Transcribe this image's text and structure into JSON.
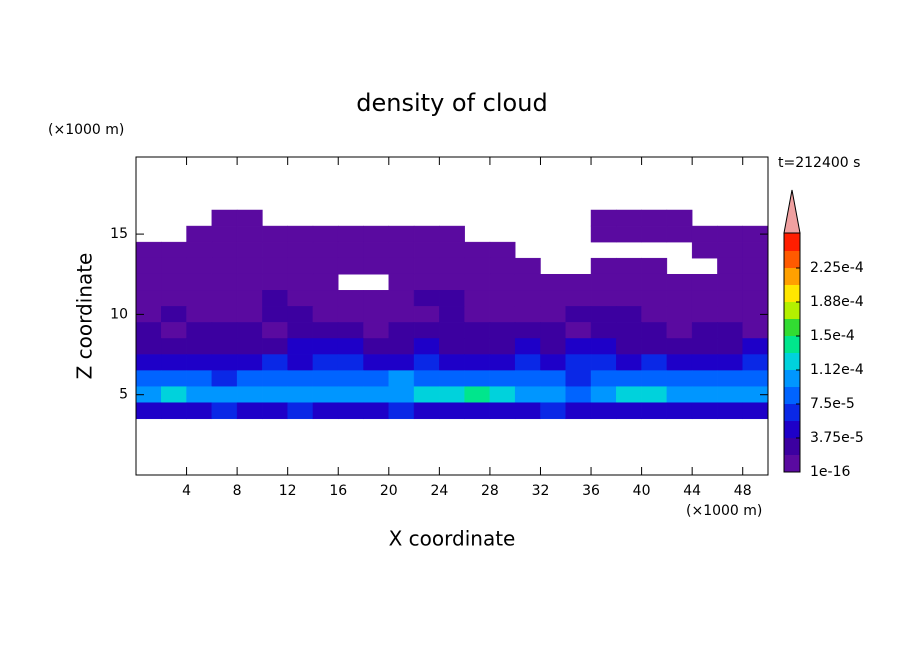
{
  "chart_data": {
    "type": "contour",
    "title": "density of cloud",
    "time_label": "t=212400 s",
    "xlabel": "X coordinate",
    "ylabel": "Z coordinate",
    "x_unit": "(×1000 m)",
    "y_unit": "(×1000 m)",
    "xlim": [
      0,
      50
    ],
    "ylim": [
      0,
      19.8
    ],
    "xticks": [
      4,
      8,
      12,
      16,
      20,
      24,
      28,
      32,
      36,
      40,
      44,
      48
    ],
    "yticks": [
      5,
      10,
      15
    ],
    "x": [
      1,
      3,
      5,
      7,
      9,
      11,
      13,
      15,
      17,
      19,
      21,
      23,
      25,
      27,
      29,
      31,
      33,
      35,
      37,
      39,
      41,
      43,
      45,
      47,
      49
    ],
    "z": [
      17,
      16,
      15,
      14,
      13,
      12,
      11,
      10,
      9,
      8,
      7,
      6,
      5,
      4
    ],
    "cell_width": 2,
    "cell_height": 1,
    "field": [
      [
        null,
        null,
        null,
        null,
        null,
        null,
        null,
        null,
        null,
        null,
        null,
        null,
        null,
        null,
        null,
        null,
        null,
        null,
        null,
        null,
        null,
        null,
        null,
        null,
        null
      ],
      [
        null,
        null,
        null,
        1e-05,
        1e-05,
        null,
        null,
        null,
        null,
        null,
        null,
        null,
        null,
        null,
        null,
        null,
        null,
        null,
        1e-05,
        1e-05,
        1e-05,
        1e-05,
        null,
        null,
        null
      ],
      [
        null,
        null,
        1e-05,
        1e-05,
        1e-05,
        1e-05,
        1e-05,
        1e-05,
        1e-05,
        1e-05,
        1e-05,
        1e-05,
        1e-05,
        null,
        null,
        null,
        null,
        null,
        1e-05,
        1e-05,
        1e-05,
        1e-05,
        1e-05,
        1e-05,
        1e-05
      ],
      [
        1e-05,
        1e-05,
        1e-05,
        1e-05,
        1e-05,
        1e-05,
        1e-05,
        1e-05,
        1e-05,
        1e-05,
        1e-05,
        1e-05,
        1e-05,
        1e-05,
        1e-05,
        null,
        null,
        null,
        null,
        null,
        null,
        null,
        1e-05,
        1e-05,
        1e-05
      ],
      [
        1e-05,
        1e-05,
        1e-05,
        1e-05,
        1e-05,
        1e-05,
        1e-05,
        1e-05,
        1e-05,
        1e-05,
        1e-05,
        1e-05,
        1e-05,
        1e-05,
        1e-05,
        1e-05,
        null,
        null,
        1e-05,
        1e-05,
        1e-05,
        null,
        null,
        1e-05,
        1e-05
      ],
      [
        1e-05,
        1e-05,
        1e-05,
        1e-05,
        1e-05,
        1e-05,
        1e-05,
        1e-05,
        null,
        null,
        1e-05,
        1e-05,
        1e-05,
        1e-05,
        1e-05,
        1e-05,
        1e-05,
        1e-05,
        1e-05,
        1e-05,
        1e-05,
        1e-05,
        1e-05,
        1e-05,
        1e-05
      ],
      [
        1e-05,
        1e-05,
        1e-05,
        1e-05,
        1e-05,
        2.5e-05,
        1e-05,
        1e-05,
        1e-05,
        1e-05,
        1e-05,
        2.5e-05,
        2.5e-05,
        1e-05,
        1e-05,
        1e-05,
        1e-05,
        1e-05,
        1e-05,
        1e-05,
        1e-05,
        1e-05,
        1e-05,
        1e-05,
        1e-05
      ],
      [
        1e-05,
        2.5e-05,
        1e-05,
        1e-05,
        1e-05,
        2.5e-05,
        2.5e-05,
        1e-05,
        1e-05,
        1e-05,
        1e-05,
        1e-05,
        2.5e-05,
        1e-05,
        1e-05,
        1e-05,
        1e-05,
        2.5e-05,
        2.5e-05,
        2.5e-05,
        1e-05,
        1e-05,
        1e-05,
        1e-05,
        1e-05
      ],
      [
        2.5e-05,
        1e-05,
        2.5e-05,
        2.5e-05,
        2.5e-05,
        1e-05,
        2.5e-05,
        2.5e-05,
        2.5e-05,
        1e-05,
        2.5e-05,
        2.5e-05,
        2.5e-05,
        2.5e-05,
        2.5e-05,
        2.5e-05,
        2.5e-05,
        1e-05,
        2.5e-05,
        2.5e-05,
        2.5e-05,
        1e-05,
        2.5e-05,
        2.5e-05,
        1e-05
      ],
      [
        2.5e-05,
        2.5e-05,
        2.5e-05,
        2.5e-05,
        2.5e-05,
        2.5e-05,
        4.5e-05,
        4.5e-05,
        4.5e-05,
        2.5e-05,
        2.5e-05,
        4.5e-05,
        2.5e-05,
        2.5e-05,
        2.5e-05,
        4.5e-05,
        2.5e-05,
        4.5e-05,
        4.5e-05,
        2.5e-05,
        2.5e-05,
        2.5e-05,
        2.5e-05,
        2.5e-05,
        4.5e-05
      ],
      [
        4.5e-05,
        4.5e-05,
        4.5e-05,
        4.5e-05,
        4.5e-05,
        6e-05,
        4.5e-05,
        6e-05,
        6e-05,
        4.5e-05,
        4.5e-05,
        6e-05,
        4.5e-05,
        4.5e-05,
        4.5e-05,
        6e-05,
        4.5e-05,
        6e-05,
        6e-05,
        4.5e-05,
        6e-05,
        4.5e-05,
        4.5e-05,
        4.5e-05,
        6e-05
      ],
      [
        8e-05,
        8e-05,
        8e-05,
        6e-05,
        8e-05,
        8e-05,
        8e-05,
        8e-05,
        8e-05,
        8e-05,
        0.0001,
        8e-05,
        8e-05,
        8e-05,
        8e-05,
        8e-05,
        8e-05,
        6e-05,
        8e-05,
        8e-05,
        8e-05,
        8e-05,
        8e-05,
        8e-05,
        8e-05
      ],
      [
        0.0001,
        0.00012,
        0.0001,
        0.0001,
        0.0001,
        0.0001,
        0.0001,
        0.0001,
        0.0001,
        0.0001,
        0.0001,
        0.00012,
        0.00012,
        0.00014,
        0.00012,
        0.0001,
        0.0001,
        8e-05,
        0.0001,
        0.00012,
        0.00012,
        0.0001,
        0.0001,
        0.0001,
        0.0001
      ],
      [
        4.5e-05,
        4.5e-05,
        4.5e-05,
        6e-05,
        4.5e-05,
        4.5e-05,
        6e-05,
        4.5e-05,
        4.5e-05,
        4.5e-05,
        6e-05,
        4.5e-05,
        4.5e-05,
        4.5e-05,
        4.5e-05,
        4.5e-05,
        6e-05,
        4.5e-05,
        4.5e-05,
        4.5e-05,
        4.5e-05,
        4.5e-05,
        4.5e-05,
        4.5e-05,
        4.5e-05
      ]
    ],
    "levels": [
      1e-16,
      1.875e-05,
      3.75e-05,
      5.625e-05,
      7.5e-05,
      9.375e-05,
      0.000112,
      0.00013125,
      0.00015,
      0.00016875,
      0.000188,
      0.00020625,
      0.000225
    ],
    "colors": [
      "#5a0aa0",
      "#3c00a0",
      "#1e00c8",
      "#0a28e6",
      "#0064ff",
      "#0096ff",
      "#00d2dc",
      "#00e68c",
      "#32dc32",
      "#b4f000",
      "#ffe600",
      "#ffa000",
      "#ff5a00"
    ],
    "extend_color": "#f0a0a0",
    "top_color": "#ff1e00",
    "colorbar_ticks": [
      {
        "value": 1e-16,
        "label": "1e-16"
      },
      {
        "value": 3.75e-05,
        "label": "3.75e-5"
      },
      {
        "value": 7.5e-05,
        "label": "7.5e-5"
      },
      {
        "value": 0.000112,
        "label": "1.12e-4"
      },
      {
        "value": 0.00015,
        "label": "1.5e-4"
      },
      {
        "value": 0.000188,
        "label": "1.88e-4"
      },
      {
        "value": 0.000225,
        "label": "2.25e-4"
      }
    ]
  }
}
